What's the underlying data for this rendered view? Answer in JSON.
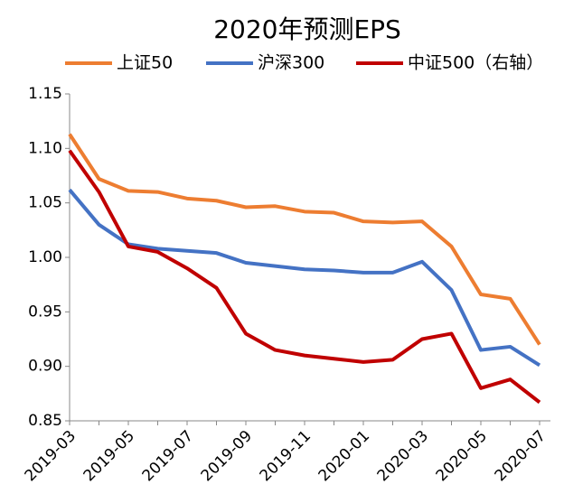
{
  "chart_data": {
    "type": "line",
    "title": "2020年预测EPS",
    "categories": [
      "2019-03",
      null,
      "2019-05",
      null,
      "2019-07",
      null,
      "2019-09",
      null,
      "2019-11",
      null,
      "2020-01",
      null,
      "2020-03",
      null,
      "2020-05",
      null,
      "2020-07"
    ],
    "series": [
      {
        "name": "上证50",
        "color": "#ed7d31",
        "values": [
          1.113,
          1.072,
          1.061,
          1.06,
          1.054,
          1.052,
          1.046,
          1.047,
          1.042,
          1.041,
          1.033,
          1.032,
          1.033,
          1.01,
          0.966,
          0.962,
          0.92
        ]
      },
      {
        "name": "沪深300",
        "color": "#4472c4",
        "values": [
          1.062,
          1.03,
          1.012,
          1.008,
          1.006,
          1.004,
          0.995,
          0.992,
          0.989,
          0.988,
          0.986,
          0.986,
          0.996,
          0.97,
          0.915,
          0.918,
          0.901
        ]
      },
      {
        "name": "中证500（右轴）",
        "color": "#c00000",
        "values": [
          1.098,
          1.06,
          1.01,
          1.005,
          0.99,
          0.972,
          0.93,
          0.915,
          0.91,
          0.907,
          0.904,
          0.906,
          0.925,
          0.93,
          0.88,
          0.888,
          0.867
        ]
      }
    ],
    "ylim": [
      0.85,
      1.15
    ],
    "yticks": [
      0.85,
      {
        "value": 0.9,
        "label": "0.90"
      },
      0.95,
      {
        "value": 1.0,
        "label": "1.00"
      },
      1.05,
      {
        "value": 1.1,
        "label": "1.10"
      },
      1.15
    ],
    "legend": "top",
    "grid": false
  }
}
